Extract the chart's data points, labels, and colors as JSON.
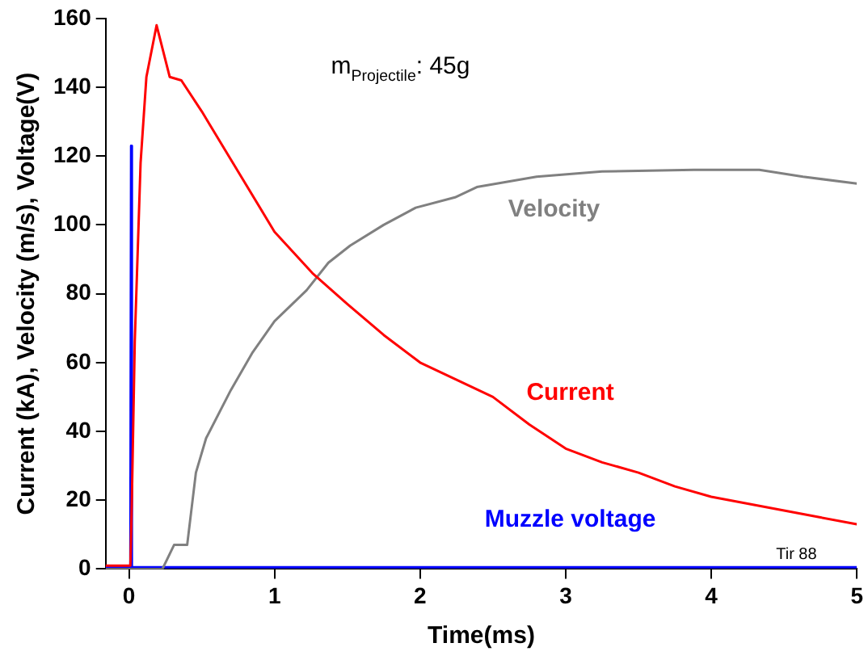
{
  "chart_data": {
    "type": "line",
    "xlabel": "Time(ms)",
    "ylabel": "Current (kA), Velocity (m/s), Voltage(V)",
    "xlim": [
      -0.16,
      5
    ],
    "xticks": [
      0,
      1,
      2,
      3,
      4,
      5
    ],
    "ylim": [
      0,
      160
    ],
    "yticks": [
      0,
      20,
      40,
      60,
      80,
      100,
      120,
      140,
      160
    ],
    "grid": false,
    "legend": false,
    "marker": "none",
    "line_style": "solid",
    "annotations": [
      "m$_{Projectile}$: 45g",
      "Tir 88"
    ],
    "series": [
      {
        "name": "Current",
        "color": "#ff0000",
        "x": [
          -0.16,
          0.01,
          0.02,
          0.04,
          0.08,
          0.12,
          0.19,
          0.28,
          0.36,
          0.5,
          0.7,
          1.0,
          1.26,
          1.5,
          1.75,
          2.0,
          2.25,
          2.5,
          2.75,
          3.0,
          3.25,
          3.5,
          3.75,
          4.0,
          4.25,
          4.5,
          4.75,
          5.0
        ],
        "values": [
          1,
          1,
          20,
          66,
          118,
          143,
          158,
          143,
          142,
          133,
          119,
          98,
          86,
          77,
          68,
          60,
          55,
          50,
          42,
          35,
          31,
          28,
          24,
          21,
          19,
          17,
          15,
          13
        ]
      },
      {
        "name": "Velocity",
        "color": "#808080",
        "x": [
          -0.16,
          0.23,
          0.31,
          0.4,
          0.46,
          0.53,
          0.7,
          0.85,
          1.0,
          1.22,
          1.37,
          1.52,
          1.75,
          1.97,
          2.24,
          2.39,
          2.8,
          3.25,
          3.88,
          4.33,
          4.63,
          5.0
        ],
        "values": [
          0,
          0,
          7,
          7,
          28,
          38,
          52,
          63,
          72,
          81,
          89,
          94,
          100,
          105,
          108,
          111,
          114,
          115.5,
          116,
          116,
          114,
          112
        ]
      },
      {
        "name": "Muzzle voltage",
        "color": "#0000ff",
        "x": [
          -0.16,
          0.01,
          0.015,
          0.02,
          1.0,
          2.0,
          3.0,
          4.0,
          5.0
        ],
        "values": [
          0.5,
          0.5,
          123,
          0.5,
          0.5,
          0.5,
          0.5,
          0.5,
          0.5
        ]
      }
    ]
  }
}
